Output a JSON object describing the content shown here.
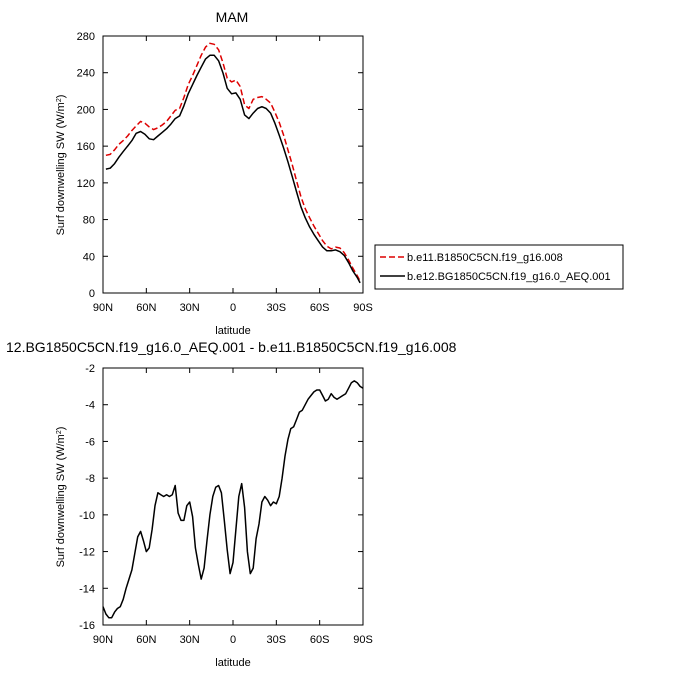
{
  "chart_data": [
    {
      "type": "line",
      "title": "MAM",
      "xlabel": "latitude",
      "ylabel": "Surf downwelling SW (W/m",
      "ylabel_sup": "2",
      "ylabel_close": ")",
      "xlim": [
        90,
        -90
      ],
      "ylim": [
        0,
        280
      ],
      "xticks": [
        90,
        60,
        30,
        0,
        -30,
        -60,
        -90
      ],
      "xtick_labels": [
        "90N",
        "60N",
        "30N",
        "0",
        "30S",
        "60S",
        "90S"
      ],
      "yticks": [
        0,
        40,
        80,
        120,
        160,
        200,
        240,
        280
      ],
      "ytick_labels": [
        "0",
        "40",
        "80",
        "120",
        "160",
        "200",
        "240",
        "280"
      ],
      "grid": false,
      "legend_position": "right",
      "series": [
        {
          "name": "b.e11.B1850C5CN.f19_g16.008",
          "color": "#dd0000",
          "dash": "dashed",
          "x": [
            88,
            85,
            82,
            79,
            76,
            73,
            70,
            67,
            64,
            61,
            58,
            55,
            52,
            49,
            46,
            43,
            40,
            37,
            34,
            31,
            28,
            25,
            22,
            19,
            16,
            13,
            10,
            7,
            4,
            1,
            -2,
            -5,
            -8,
            -11,
            -14,
            -17,
            -20,
            -23,
            -26,
            -29,
            -32,
            -35,
            -38,
            -41,
            -44,
            -47,
            -50,
            -53,
            -56,
            -59,
            -62,
            -65,
            -68,
            -71,
            -74,
            -77,
            -80,
            -83,
            -86,
            -88
          ],
          "y": [
            150,
            151,
            156,
            162,
            166,
            171,
            177,
            182,
            187,
            185,
            181,
            178,
            180,
            183,
            187,
            193,
            199,
            201,
            213,
            227,
            237,
            248,
            259,
            268,
            272,
            271,
            265,
            251,
            234,
            230,
            232,
            225,
            205,
            201,
            211,
            213,
            214,
            211,
            207,
            197,
            186,
            172,
            156,
            140,
            122,
            105,
            92,
            82,
            73,
            65,
            57,
            51,
            48,
            50,
            49,
            44,
            36,
            27,
            19,
            13
          ]
        },
        {
          "name": "b.e12.BG1850C5CN.f19_g16.0_AEQ.001",
          "color": "#000000",
          "dash": "solid",
          "x": [
            88,
            85,
            82,
            79,
            76,
            73,
            70,
            67,
            64,
            61,
            58,
            55,
            52,
            49,
            46,
            43,
            40,
            37,
            34,
            31,
            28,
            25,
            22,
            19,
            16,
            13,
            10,
            7,
            4,
            1,
            -2,
            -5,
            -8,
            -11,
            -14,
            -17,
            -20,
            -23,
            -26,
            -29,
            -32,
            -35,
            -38,
            -41,
            -44,
            -47,
            -50,
            -53,
            -56,
            -59,
            -62,
            -65,
            -68,
            -71,
            -74,
            -77,
            -80,
            -83,
            -86,
            -88
          ],
          "y": [
            135,
            136,
            141,
            148,
            154,
            160,
            166,
            174,
            176,
            173,
            168,
            167,
            171,
            175,
            179,
            184,
            190,
            193,
            204,
            217,
            227,
            237,
            246,
            255,
            259,
            259,
            253,
            240,
            223,
            217,
            218,
            211,
            194,
            190,
            196,
            201,
            203,
            201,
            196,
            185,
            172,
            158,
            143,
            127,
            110,
            94,
            82,
            72,
            64,
            57,
            50,
            46,
            46,
            47,
            45,
            41,
            33,
            24,
            17,
            11
          ]
        }
      ]
    },
    {
      "type": "line",
      "title": "12.BG1850C5CN.f19_g16.0_AEQ.001 - b.e11.B1850C5CN.f19_g16.008",
      "xlabel": "latitude",
      "ylabel": "Surf downwelling SW (W/m",
      "ylabel_sup": "2",
      "ylabel_close": ")",
      "xlim": [
        90,
        -90
      ],
      "ylim": [
        -16,
        -2
      ],
      "xticks": [
        90,
        60,
        30,
        0,
        -30,
        -60,
        -90
      ],
      "xtick_labels": [
        "90N",
        "60N",
        "30N",
        "0",
        "30S",
        "60S",
        "90S"
      ],
      "yticks": [
        -16,
        -14,
        -12,
        -10,
        -8,
        -6,
        -4,
        -2
      ],
      "ytick_labels": [
        "-16",
        "-14",
        "-12",
        "-10",
        "-8",
        "-6",
        "-4",
        "-2"
      ],
      "grid": false,
      "series": [
        {
          "name": "",
          "color": "#000000",
          "dash": "solid",
          "x": [
            90,
            88,
            86,
            84,
            82,
            80,
            78,
            76,
            74,
            72,
            70,
            68,
            66,
            64,
            62,
            60,
            58,
            56,
            54,
            52,
            50,
            48,
            46,
            44,
            42,
            40,
            38,
            36,
            34,
            32,
            30,
            28,
            26,
            24,
            22,
            20,
            18,
            16,
            14,
            12,
            10,
            8,
            6,
            4,
            2,
            0,
            -2,
            -4,
            -6,
            -8,
            -10,
            -12,
            -14,
            -16,
            -18,
            -20,
            -22,
            -24,
            -26,
            -28,
            -30,
            -32,
            -34,
            -36,
            -38,
            -40,
            -42,
            -44,
            -46,
            -48,
            -50,
            -52,
            -54,
            -56,
            -58,
            -60,
            -62,
            -64,
            -66,
            -68,
            -70,
            -72,
            -74,
            -76,
            -78,
            -80,
            -82,
            -84,
            -86,
            -88,
            -90
          ],
          "y": [
            -15.0,
            -15.4,
            -15.6,
            -15.6,
            -15.3,
            -15.1,
            -15.0,
            -14.6,
            -14.0,
            -13.5,
            -13.0,
            -12.1,
            -11.2,
            -10.9,
            -11.4,
            -12.0,
            -11.8,
            -10.8,
            -9.5,
            -8.8,
            -8.9,
            -9.0,
            -8.9,
            -9.0,
            -8.9,
            -8.4,
            -9.9,
            -10.3,
            -10.3,
            -9.5,
            -9.3,
            -10.1,
            -11.8,
            -12.7,
            -13.5,
            -12.9,
            -11.4,
            -10.0,
            -9.0,
            -8.5,
            -8.4,
            -8.8,
            -10.3,
            -11.9,
            -13.2,
            -12.6,
            -10.8,
            -9.0,
            -8.3,
            -9.6,
            -12.0,
            -13.2,
            -12.9,
            -11.3,
            -10.5,
            -9.3,
            -9.0,
            -9.2,
            -9.5,
            -9.3,
            -9.4,
            -9.0,
            -8.0,
            -6.8,
            -5.9,
            -5.3,
            -5.2,
            -4.8,
            -4.4,
            -4.3,
            -4.0,
            -3.7,
            -3.5,
            -3.3,
            -3.2,
            -3.2,
            -3.5,
            -3.8,
            -3.7,
            -3.4,
            -3.6,
            -3.7,
            -3.6,
            -3.5,
            -3.4,
            -3.1,
            -2.8,
            -2.7,
            -2.8,
            -3.0,
            -3.1
          ]
        }
      ]
    }
  ]
}
